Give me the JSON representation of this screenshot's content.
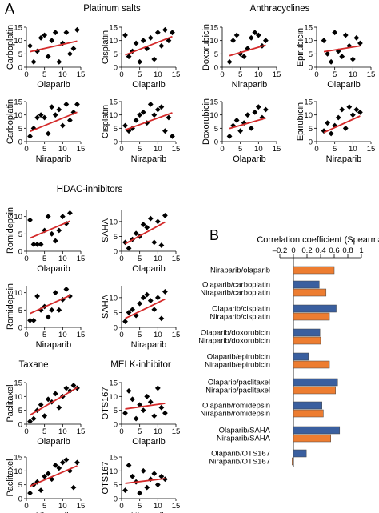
{
  "panel_labels": {
    "A": "A",
    "B": "B"
  },
  "group_titles": [
    {
      "text": "Platinum salts"
    },
    {
      "text": "Anthracyclines"
    },
    {
      "text": "HDAC-inhibitors"
    },
    {
      "text": "Taxane"
    },
    {
      "text": "MELK-inhibitor"
    }
  ],
  "colors": {
    "fit": "#d42a2a",
    "olaparib": "#3a5f9f",
    "niraparib": "#ed7d31",
    "points": "#000000"
  },
  "chart_data": [
    {
      "type": "scatter",
      "xlabel": "Olaparib",
      "ylabel": "Carboplatin",
      "xlim": [
        0,
        15
      ],
      "ylim": [
        0,
        15
      ],
      "xticks": [
        0,
        5,
        10,
        15
      ],
      "yticks": [
        0,
        5,
        10,
        15
      ],
      "x": [
        1,
        2,
        3,
        4,
        5,
        6,
        7,
        8,
        9,
        10,
        11,
        12,
        13,
        14
      ],
      "y": [
        8,
        2,
        6,
        11,
        12,
        4,
        10,
        13,
        2,
        9,
        13,
        5,
        7,
        14
      ],
      "fit": [
        [
          1,
          5.8
        ],
        [
          14,
          9.8
        ]
      ]
    },
    {
      "type": "scatter",
      "xlabel": "Olaparib",
      "ylabel": "Cisplatin",
      "xlim": [
        0,
        15
      ],
      "ylim": [
        0,
        15
      ],
      "xticks": [
        0,
        5,
        10,
        15
      ],
      "yticks": [
        0,
        5,
        10,
        15
      ],
      "x": [
        1,
        2,
        3,
        4,
        5,
        6,
        7,
        8,
        9,
        10,
        11,
        12,
        13,
        14
      ],
      "y": [
        12,
        4,
        6,
        9,
        2,
        10,
        7,
        11,
        3,
        13,
        8,
        14,
        10,
        13
      ],
      "fit": [
        [
          1,
          4.6
        ],
        [
          14,
          11.5
        ]
      ]
    },
    {
      "type": "scatter",
      "xlabel": "Niraparib",
      "ylabel": "Doxorubicin",
      "xlim": [
        0,
        15
      ],
      "ylim": [
        0,
        15
      ],
      "xticks": [
        0,
        5,
        10,
        15
      ],
      "yticks": [
        0,
        5,
        10,
        15
      ],
      "x": [
        2,
        3,
        4,
        5,
        6,
        7,
        8,
        9,
        10,
        11,
        12
      ],
      "y": [
        2,
        10,
        12,
        5,
        4,
        7,
        11,
        13,
        12,
        8,
        10
      ],
      "fit": [
        [
          2,
          4.3
        ],
        [
          12,
          8.3
        ]
      ]
    },
    {
      "type": "scatter",
      "xlabel": "Olaparib",
      "ylabel": "Epirubicin",
      "xlim": [
        0,
        15
      ],
      "ylim": [
        0,
        15
      ],
      "xticks": [
        0,
        5,
        10,
        15
      ],
      "yticks": [
        0,
        5,
        10,
        15
      ],
      "x": [
        2,
        3,
        4,
        5,
        6,
        7,
        8,
        9,
        10,
        11,
        12
      ],
      "y": [
        10,
        5,
        2,
        13,
        6,
        4,
        12,
        8,
        3,
        11,
        9
      ],
      "fit": [
        [
          2,
          5.8
        ],
        [
          12,
          8.0
        ]
      ]
    },
    {
      "type": "scatter",
      "xlabel": "Niraparib",
      "ylabel": "Carboplatin",
      "xlim": [
        0,
        15
      ],
      "ylim": [
        0,
        15
      ],
      "xticks": [
        0,
        5,
        10,
        15
      ],
      "yticks": [
        0,
        5,
        10,
        15
      ],
      "x": [
        1,
        2,
        3,
        4,
        5,
        6,
        7,
        8,
        9,
        10,
        11,
        12,
        13,
        14
      ],
      "y": [
        2,
        5,
        9,
        10,
        9,
        3,
        13,
        10,
        12,
        6,
        14,
        8,
        11,
        14
      ],
      "fit": [
        [
          1,
          3.8
        ],
        [
          14,
          11.0
        ]
      ]
    },
    {
      "type": "scatter",
      "xlabel": "Niraparib",
      "ylabel": "Cisplatin",
      "xlim": [
        0,
        15
      ],
      "ylim": [
        0,
        15
      ],
      "xticks": [
        0,
        5,
        10,
        15
      ],
      "yticks": [
        0,
        5,
        10,
        15
      ],
      "x": [
        1,
        2,
        3,
        4,
        5,
        6,
        7,
        8,
        9,
        10,
        11,
        12,
        13,
        14
      ],
      "y": [
        6,
        4,
        5,
        8,
        10,
        11,
        7,
        14,
        10,
        12,
        13,
        4,
        9,
        2
      ],
      "fit": [
        [
          1,
          4.4
        ],
        [
          14,
          10.8
        ]
      ]
    },
    {
      "type": "scatter",
      "xlabel": "Olaparib",
      "ylabel": "Doxorubicin",
      "xlim": [
        0,
        15
      ],
      "ylim": [
        0,
        15
      ],
      "xticks": [
        0,
        5,
        10,
        15
      ],
      "yticks": [
        0,
        5,
        10,
        15
      ],
      "x": [
        2,
        3,
        4,
        5,
        6,
        7,
        8,
        9,
        10,
        11,
        12
      ],
      "y": [
        2,
        6,
        8,
        4,
        7,
        10,
        5,
        11,
        13,
        9,
        12
      ],
      "fit": [
        [
          2,
          4.9
        ],
        [
          12,
          8.8
        ]
      ]
    },
    {
      "type": "scatter",
      "xlabel": "Niraparib",
      "ylabel": "Epirubicin",
      "xlim": [
        0,
        15
      ],
      "ylim": [
        0,
        15
      ],
      "xticks": [
        0,
        5,
        10,
        15
      ],
      "yticks": [
        0,
        5,
        10,
        15
      ],
      "x": [
        2,
        3,
        4,
        5,
        6,
        7,
        8,
        9,
        10,
        11,
        12
      ],
      "y": [
        4,
        7,
        3,
        6,
        9,
        12,
        5,
        13,
        10,
        12,
        11
      ],
      "fit": [
        [
          2,
          3.4
        ],
        [
          12,
          9.6
        ]
      ]
    },
    {
      "type": "scatter",
      "xlabel": "Olaparib",
      "ylabel": "Romidepsin",
      "xlim": [
        0,
        15
      ],
      "ylim": [
        0,
        12
      ],
      "xticks": [
        0,
        5,
        10,
        15
      ],
      "yticks": [
        0,
        5,
        10
      ],
      "x": [
        1,
        2,
        3,
        4,
        5,
        6,
        7,
        8,
        9,
        10,
        11,
        12
      ],
      "y": [
        9,
        2,
        2,
        2,
        6,
        10,
        5,
        3,
        6,
        10,
        8,
        11
      ],
      "fit": [
        [
          1,
          3.8
        ],
        [
          12,
          8.7
        ]
      ]
    },
    {
      "type": "scatter",
      "xlabel": "Olaparib",
      "ylabel": "SAHA",
      "xlim": [
        0,
        15
      ],
      "ylim": [
        0,
        14
      ],
      "xticks": [
        0,
        5,
        10,
        15
      ],
      "yticks": [
        0,
        5,
        10
      ],
      "x": [
        1,
        2,
        3,
        4,
        5,
        6,
        7,
        8,
        9,
        10,
        11,
        12
      ],
      "y": [
        3,
        1,
        4,
        6,
        5,
        9,
        8,
        11,
        3,
        10,
        2,
        12
      ],
      "fit": [
        [
          1,
          2.5
        ],
        [
          12,
          9.8
        ]
      ]
    },
    {
      "type": "scatter",
      "xlabel": "Niraparib",
      "ylabel": "Romidepsin",
      "xlim": [
        0,
        15
      ],
      "ylim": [
        0,
        12
      ],
      "xticks": [
        0,
        5,
        10,
        15
      ],
      "yticks": [
        0,
        5,
        10
      ],
      "x": [
        1,
        2,
        3,
        4,
        5,
        6,
        7,
        8,
        9,
        10,
        11,
        12
      ],
      "y": [
        2,
        2,
        9,
        5,
        6,
        3,
        5,
        10,
        5,
        8,
        11,
        9
      ],
      "fit": [
        [
          1,
          4.0
        ],
        [
          12,
          9.2
        ]
      ]
    },
    {
      "type": "scatter",
      "xlabel": "Niraparib",
      "ylabel": "SAHA",
      "xlim": [
        0,
        15
      ],
      "ylim": [
        0,
        14
      ],
      "xticks": [
        0,
        5,
        10,
        15
      ],
      "yticks": [
        0,
        5,
        10
      ],
      "x": [
        1,
        2,
        3,
        4,
        5,
        6,
        7,
        8,
        9,
        10,
        11,
        12
      ],
      "y": [
        2,
        5,
        6,
        4,
        8,
        10,
        11,
        9,
        6,
        10,
        3,
        12
      ],
      "fit": [
        [
          1,
          3.0
        ],
        [
          12,
          9.5
        ]
      ]
    },
    {
      "type": "scatter",
      "xlabel": "Olaparib",
      "ylabel": "Paclitaxel",
      "xlim": [
        0,
        15
      ],
      "ylim": [
        0,
        15
      ],
      "xticks": [
        0,
        5,
        10,
        15
      ],
      "yticks": [
        0,
        5,
        10,
        15
      ],
      "x": [
        1,
        2,
        3,
        4,
        5,
        6,
        7,
        8,
        9,
        10,
        11,
        12,
        13,
        14
      ],
      "y": [
        1,
        2,
        5,
        7,
        3,
        9,
        8,
        11,
        6,
        10,
        13,
        12,
        14,
        13
      ],
      "fit": [
        [
          1,
          3.3
        ],
        [
          14,
          13.2
        ]
      ]
    },
    {
      "type": "scatter",
      "xlabel": "Olaparib",
      "ylabel": "OTS167",
      "xlim": [
        0,
        15
      ],
      "ylim": [
        0,
        15
      ],
      "xticks": [
        0,
        5,
        10,
        15
      ],
      "yticks": [
        0,
        5,
        10,
        15
      ],
      "x": [
        1,
        2,
        3,
        4,
        5,
        6,
        7,
        8,
        9,
        10,
        11,
        12
      ],
      "y": [
        4,
        12,
        9,
        2,
        7,
        5,
        10,
        8,
        3,
        13,
        6,
        4
      ],
      "fit": [
        [
          1,
          5.5
        ],
        [
          12,
          7.5
        ]
      ]
    },
    {
      "type": "scatter",
      "xlabel": "Niraparib",
      "ylabel": "Paclitaxel",
      "xlim": [
        0,
        15
      ],
      "ylim": [
        0,
        15
      ],
      "xticks": [
        0,
        5,
        10,
        15
      ],
      "yticks": [
        0,
        5,
        10,
        15
      ],
      "x": [
        1,
        2,
        3,
        4,
        5,
        6,
        7,
        8,
        9,
        10,
        11,
        12,
        13,
        14
      ],
      "y": [
        2,
        5,
        6,
        3,
        8,
        9,
        7,
        12,
        11,
        13,
        14,
        10,
        4,
        13
      ],
      "fit": [
        [
          1,
          4.5
        ],
        [
          14,
          11.8
        ]
      ]
    },
    {
      "type": "scatter",
      "xlabel": "Niraparib",
      "ylabel": "OTS167",
      "xlim": [
        0,
        15
      ],
      "ylim": [
        0,
        15
      ],
      "xticks": [
        0,
        5,
        10,
        15
      ],
      "yticks": [
        0,
        5,
        10,
        15
      ],
      "x": [
        1,
        2,
        3,
        4,
        5,
        6,
        7,
        8,
        9,
        10,
        11,
        12
      ],
      "y": [
        3,
        12,
        8,
        6,
        2,
        10,
        4,
        7,
        9,
        5,
        8,
        7
      ],
      "fit": [
        [
          1,
          5.5
        ],
        [
          12,
          7.2
        ]
      ]
    },
    {
      "type": "bar",
      "orientation": "horizontal",
      "title": "Correlation coefficient (Spearman)",
      "xlim": [
        -0.2,
        1
      ],
      "xticks": [
        "–0.2",
        "0",
        "0.2",
        "0.4",
        "0.6",
        "0.8",
        "1"
      ],
      "groups": [
        {
          "labels": [
            "Niraparib/olaparib"
          ],
          "bars": [
            {
              "series": "niraparib",
              "value": 0.6
            }
          ]
        },
        {
          "labels": [
            "Olaparib/carboplatin",
            "Niraparib/carboplatin"
          ],
          "bars": [
            {
              "series": "olaparib",
              "value": 0.38
            },
            {
              "series": "niraparib",
              "value": 0.48
            }
          ]
        },
        {
          "labels": [
            "Olaparib/cisplatin",
            "Niraparib/cisplatin"
          ],
          "bars": [
            {
              "series": "olaparib",
              "value": 0.63
            },
            {
              "series": "niraparib",
              "value": 0.53
            }
          ]
        },
        {
          "labels": [
            "Olaparib/doxorubicin",
            "Niraparib/doxorubicin"
          ],
          "bars": [
            {
              "series": "olaparib",
              "value": 0.39
            },
            {
              "series": "niraparib",
              "value": 0.4
            }
          ]
        },
        {
          "labels": [
            "Olaparib/epirubicin",
            "Niraparib/epirubicin"
          ],
          "bars": [
            {
              "series": "olaparib",
              "value": 0.22
            },
            {
              "series": "niraparib",
              "value": 0.53
            }
          ]
        },
        {
          "labels": [
            "Olaparib/paclitaxel",
            "Niraparib/paclitaxel"
          ],
          "bars": [
            {
              "series": "olaparib",
              "value": 0.65
            },
            {
              "series": "niraparib",
              "value": 0.62
            }
          ]
        },
        {
          "labels": [
            "Olaparib/romidepsin",
            "Niraparib/romidepsin"
          ],
          "bars": [
            {
              "series": "olaparib",
              "value": 0.42
            },
            {
              "series": "niraparib",
              "value": 0.44
            }
          ]
        },
        {
          "labels": [
            "Olaparib/SAHA",
            "Niraparib/SAHA"
          ],
          "bars": [
            {
              "series": "olaparib",
              "value": 0.68
            },
            {
              "series": "niraparib",
              "value": 0.55
            }
          ]
        },
        {
          "labels": [
            "Olaparib/OTS167",
            "Niraparib/OTS167"
          ],
          "bars": [
            {
              "series": "olaparib",
              "value": 0.19
            },
            {
              "series": "niraparib",
              "value": -0.02
            }
          ]
        }
      ]
    }
  ]
}
